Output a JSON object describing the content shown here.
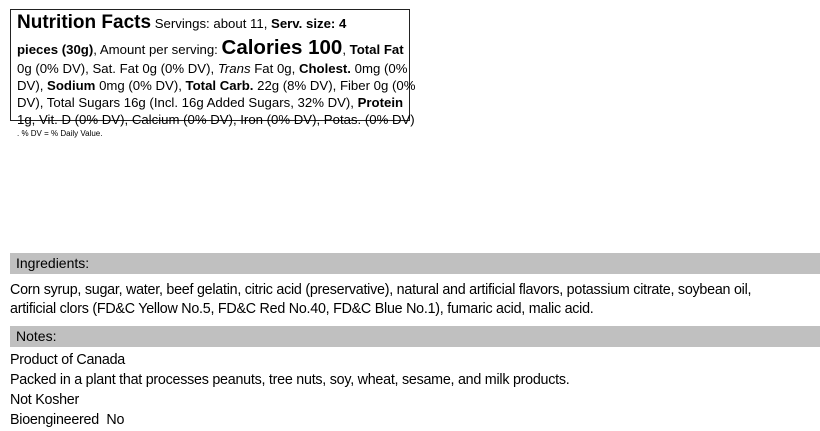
{
  "nutrition_label": {
    "lines": [
      [
        {
          "t": "Nutrition Facts",
          "s": "big"
        },
        {
          "t": " Servings: about 11, "
        },
        {
          "t": "Serv. size: 4",
          "s": "b"
        }
      ],
      [
        {
          "t": "pieces (30g)",
          "s": "b"
        },
        {
          "t": ", Amount per serving: "
        },
        {
          "t": "Calories 100",
          "s": "huge"
        },
        {
          "t": ", "
        },
        {
          "t": "Total Fat",
          "s": "b"
        }
      ],
      [
        {
          "t": "0g (0% DV), Sat. Fat 0g (0% DV), "
        },
        {
          "t": "Trans",
          "s": "i"
        },
        {
          "t": " Fat 0g, "
        },
        {
          "t": "Cholest.",
          "s": "b"
        },
        {
          "t": " 0mg (0%"
        }
      ],
      [
        {
          "t": "DV), "
        },
        {
          "t": "Sodium",
          "s": "b"
        },
        {
          "t": " 0mg (0% DV), "
        },
        {
          "t": "Total Carb.",
          "s": "b"
        },
        {
          "t": " 22g (8% DV), Fiber 0g (0%"
        }
      ],
      [
        {
          "t": "DV), Total Sugars 16g (Incl. 16g Added Sugars, 32% DV), "
        },
        {
          "t": "Protein",
          "s": "b"
        }
      ],
      [
        {
          "t": "1g, Vit. D (0% DV), Calcium (0% DV), Iron (0% DV), Potas. (0% DV)"
        }
      ],
      [
        {
          "t": ". % DV = % Daily Value."
        }
      ]
    ]
  },
  "ingredients": {
    "heading": "Ingredients:",
    "lines": [
      "Corn syrup, sugar, water, beef gelatin, citric acid (preservative), natural and artificial flavors, potassium citrate, soybean oil,",
      "artificial clors (FD&C Yellow No.5, FD&C Red No.40, FD&C Blue No.1), fumaric acid, malic acid."
    ]
  },
  "notes": {
    "heading": "Notes:",
    "lines": [
      "Product of Canada",
      "Packed in a plant that processes peanuts, tree nuts, soy, wheat, sesame, and milk products.",
      "Not Kosher",
      "Bioengineered  No"
    ]
  },
  "colors": {
    "section_bar": "#c0c0c0"
  }
}
